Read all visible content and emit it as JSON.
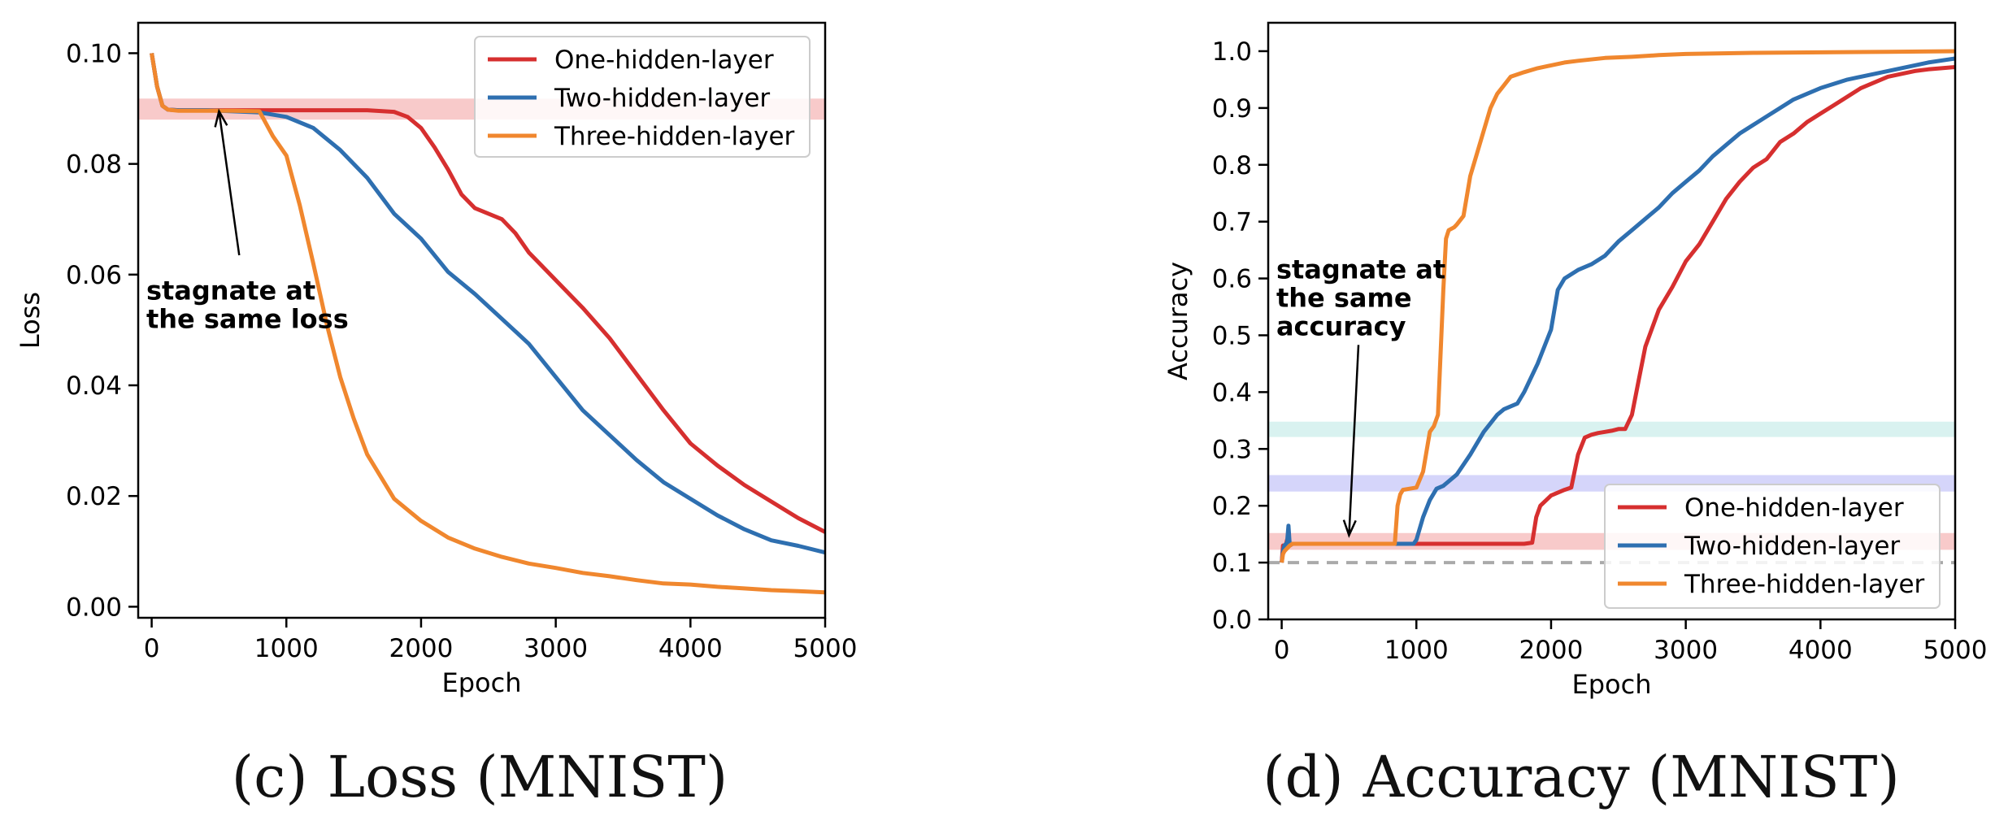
{
  "captions": [
    {
      "tag": "(c)",
      "text": "Loss (MNIST)"
    },
    {
      "tag": "(d)",
      "text": "Accuracy (MNIST)"
    }
  ],
  "chart_data": [
    {
      "type": "line",
      "xlabel": "Epoch",
      "ylabel": "Loss",
      "xlim": [
        -100,
        5000
      ],
      "ylim": [
        -0.002,
        0.1055
      ],
      "xticks": [
        0,
        1000,
        2000,
        3000,
        4000,
        5000
      ],
      "xtick_labels": [
        "0",
        "1000",
        "2000",
        "3000",
        "4000",
        "5000"
      ],
      "yticks": [
        0.0,
        0.02,
        0.04,
        0.06,
        0.08,
        0.1
      ],
      "ytick_labels": [
        "0.00",
        "0.02",
        "0.04",
        "0.06",
        "0.08",
        "0.10"
      ],
      "grid": false,
      "legend_position": "top-right",
      "bands": [
        {
          "y0": 0.088,
          "y1": 0.0918,
          "color": "#f4a6a6"
        }
      ],
      "reference_lines": [],
      "annotation": {
        "lines": [
          "stagnate at",
          "the same loss"
        ],
        "text_x": -40,
        "text_y": 0.0555,
        "arrow_from": [
          650,
          0.0635
        ],
        "arrow_to": [
          500,
          0.0895
        ]
      },
      "series": [
        {
          "name": "One-hidden-layer",
          "color": "#d62f2f",
          "x": [
            0,
            40,
            80,
            120,
            200,
            400,
            800,
            1200,
            1600,
            1800,
            1900,
            2000,
            2100,
            2200,
            2300,
            2400,
            2600,
            2700,
            2800,
            2900,
            3000,
            3200,
            3400,
            3600,
            3800,
            4000,
            4200,
            4400,
            4600,
            4800,
            5000
          ],
          "y": [
            0.1,
            0.094,
            0.0905,
            0.0898,
            0.0897,
            0.0897,
            0.0897,
            0.0897,
            0.0897,
            0.0894,
            0.0885,
            0.0865,
            0.083,
            0.079,
            0.0745,
            0.072,
            0.07,
            0.0675,
            0.064,
            0.0615,
            0.059,
            0.054,
            0.0485,
            0.042,
            0.0355,
            0.0295,
            0.0255,
            0.022,
            0.019,
            0.016,
            0.0135
          ]
        },
        {
          "name": "Two-hidden-layer",
          "color": "#2e6fb0",
          "x": [
            0,
            40,
            80,
            120,
            200,
            400,
            600,
            800,
            1000,
            1200,
            1400,
            1600,
            1800,
            2000,
            2200,
            2400,
            2600,
            2800,
            3000,
            3200,
            3400,
            3600,
            3800,
            4000,
            4200,
            4400,
            4600,
            4800,
            5000
          ],
          "y": [
            0.1,
            0.094,
            0.0905,
            0.0898,
            0.0897,
            0.0897,
            0.0895,
            0.0893,
            0.0885,
            0.0865,
            0.0825,
            0.0775,
            0.071,
            0.0665,
            0.0605,
            0.0565,
            0.052,
            0.0475,
            0.0415,
            0.0355,
            0.031,
            0.0265,
            0.0225,
            0.0195,
            0.0165,
            0.014,
            0.012,
            0.011,
            0.0098
          ]
        },
        {
          "name": "Three-hidden-layer",
          "color": "#f0872e",
          "x": [
            0,
            40,
            80,
            120,
            200,
            400,
            600,
            800,
            900,
            1000,
            1100,
            1200,
            1300,
            1400,
            1500,
            1600,
            1800,
            2000,
            2200,
            2400,
            2600,
            2800,
            3000,
            3200,
            3400,
            3600,
            3800,
            4000,
            4200,
            4400,
            4600,
            4800,
            5000
          ],
          "y": [
            0.1,
            0.094,
            0.0905,
            0.0898,
            0.0896,
            0.0896,
            0.0896,
            0.0895,
            0.085,
            0.0815,
            0.0725,
            0.062,
            0.051,
            0.0415,
            0.034,
            0.0275,
            0.0195,
            0.0155,
            0.0125,
            0.0105,
            0.009,
            0.0078,
            0.007,
            0.0061,
            0.0055,
            0.0048,
            0.0042,
            0.004,
            0.0036,
            0.0033,
            0.003,
            0.0028,
            0.0026
          ]
        }
      ]
    },
    {
      "type": "line",
      "xlabel": "Epoch",
      "ylabel": "Accuracy",
      "xlim": [
        -100,
        5000
      ],
      "ylim": [
        0.0,
        1.05
      ],
      "xticks": [
        0,
        1000,
        2000,
        3000,
        4000,
        5000
      ],
      "xtick_labels": [
        "0",
        "1000",
        "2000",
        "3000",
        "4000",
        "5000"
      ],
      "yticks": [
        0.0,
        0.1,
        0.2,
        0.3,
        0.4,
        0.5,
        0.6,
        0.7,
        0.8,
        0.9,
        1.0
      ],
      "ytick_labels": [
        "0.0",
        "0.1",
        "0.2",
        "0.3",
        "0.4",
        "0.5",
        "0.6",
        "0.7",
        "0.8",
        "0.9",
        "1.0"
      ],
      "grid": false,
      "legend_position": "bottom-right",
      "bands": [
        {
          "y0": 0.1225,
          "y1": 0.152,
          "color": "#f4a6a6"
        },
        {
          "y0": 0.225,
          "y1": 0.254,
          "color": "#b9b9f7"
        },
        {
          "y0": 0.321,
          "y1": 0.348,
          "color": "#bfeae6"
        }
      ],
      "reference_lines": [
        {
          "y": 0.1,
          "color": "#aaaaaa",
          "dash": "14,10"
        }
      ],
      "annotation": {
        "lines": [
          "stagnate at",
          "the same",
          "accuracy"
        ],
        "text_x": -40,
        "text_y": 0.6,
        "arrow_from": [
          570,
          0.483
        ],
        "arrow_to": [
          500,
          0.148
        ]
      },
      "series": [
        {
          "name": "One-hidden-layer",
          "color": "#d62f2f",
          "x": [
            0,
            10,
            20,
            40,
            60,
            80,
            100,
            500,
            1000,
            1500,
            1800,
            1860,
            1890,
            1920,
            2000,
            2100,
            2150,
            2200,
            2250,
            2300,
            2350,
            2400,
            2450,
            2500,
            2550,
            2600,
            2650,
            2700,
            2800,
            2900,
            3000,
            3100,
            3200,
            3300,
            3400,
            3500,
            3600,
            3700,
            3800,
            3900,
            4000,
            4100,
            4200,
            4300,
            4400,
            4500,
            4600,
            4700,
            4800,
            4900,
            5000
          ],
          "y": [
            0.1,
            0.13,
            0.12,
            0.14,
            0.13,
            0.133,
            0.133,
            0.133,
            0.133,
            0.133,
            0.133,
            0.135,
            0.18,
            0.2,
            0.218,
            0.228,
            0.232,
            0.29,
            0.32,
            0.325,
            0.328,
            0.33,
            0.332,
            0.335,
            0.335,
            0.36,
            0.42,
            0.48,
            0.545,
            0.585,
            0.63,
            0.66,
            0.7,
            0.74,
            0.77,
            0.795,
            0.81,
            0.84,
            0.855,
            0.875,
            0.89,
            0.905,
            0.92,
            0.935,
            0.945,
            0.955,
            0.96,
            0.965,
            0.968,
            0.97,
            0.972
          ]
        },
        {
          "name": "Two-hidden-layer",
          "color": "#2e6fb0",
          "x": [
            0,
            10,
            20,
            40,
            50,
            60,
            80,
            100,
            500,
            900,
            980,
            1000,
            1050,
            1100,
            1150,
            1200,
            1300,
            1400,
            1500,
            1600,
            1650,
            1700,
            1750,
            1800,
            1900,
            2000,
            2050,
            2100,
            2200,
            2300,
            2400,
            2500,
            2600,
            2700,
            2800,
            2900,
            3000,
            3100,
            3200,
            3300,
            3400,
            3500,
            3600,
            3700,
            3800,
            3900,
            4000,
            4200,
            4400,
            4600,
            4800,
            5000
          ],
          "y": [
            0.1,
            0.12,
            0.13,
            0.135,
            0.165,
            0.13,
            0.133,
            0.133,
            0.133,
            0.133,
            0.133,
            0.14,
            0.18,
            0.21,
            0.23,
            0.235,
            0.255,
            0.29,
            0.33,
            0.36,
            0.37,
            0.375,
            0.38,
            0.4,
            0.45,
            0.51,
            0.58,
            0.6,
            0.615,
            0.625,
            0.64,
            0.665,
            0.685,
            0.705,
            0.725,
            0.75,
            0.77,
            0.79,
            0.815,
            0.835,
            0.855,
            0.87,
            0.885,
            0.9,
            0.915,
            0.925,
            0.935,
            0.95,
            0.96,
            0.97,
            0.98,
            0.987
          ]
        },
        {
          "name": "Three-hidden-layer",
          "color": "#f0872e",
          "x": [
            0,
            10,
            20,
            40,
            60,
            80,
            100,
            500,
            840,
            860,
            880,
            900,
            950,
            1000,
            1050,
            1100,
            1130,
            1160,
            1200,
            1220,
            1240,
            1280,
            1300,
            1350,
            1400,
            1450,
            1500,
            1550,
            1600,
            1650,
            1700,
            1800,
            1900,
            2000,
            2100,
            2200,
            2400,
            2600,
            2800,
            3000,
            3500,
            4000,
            4500,
            5000
          ],
          "y": [
            0.1,
            0.115,
            0.12,
            0.125,
            0.13,
            0.133,
            0.133,
            0.133,
            0.133,
            0.2,
            0.22,
            0.228,
            0.23,
            0.232,
            0.26,
            0.33,
            0.34,
            0.36,
            0.58,
            0.67,
            0.685,
            0.69,
            0.695,
            0.71,
            0.78,
            0.82,
            0.86,
            0.9,
            0.925,
            0.94,
            0.955,
            0.963,
            0.97,
            0.975,
            0.98,
            0.983,
            0.988,
            0.99,
            0.993,
            0.995,
            0.997,
            0.998,
            0.999,
            1.0
          ]
        }
      ]
    }
  ]
}
